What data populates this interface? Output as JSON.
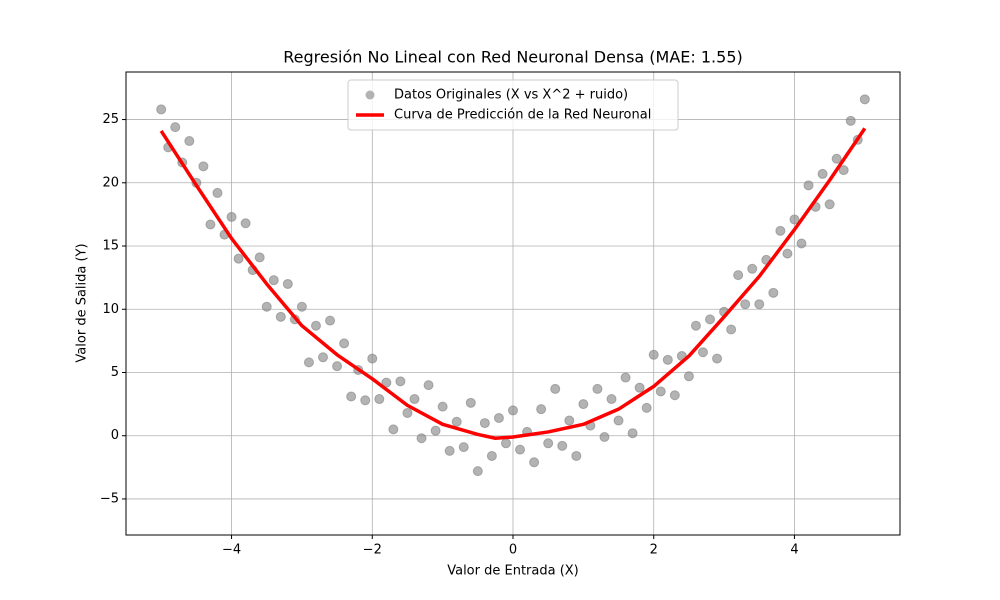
{
  "chart_data": {
    "type": "scatter",
    "title": "Regresión No Lineal con Red Neuronal Densa (MAE: 1.55)",
    "x_label": "Valor de Entrada (X)",
    "y_label": "Valor de Salida (Y)",
    "xlim": [
      -5.5,
      5.5
    ],
    "ylim": [
      -7.85,
      28.76
    ],
    "xticks": [
      {
        "value": -4,
        "label": "−4"
      },
      {
        "value": -2,
        "label": "−2"
      },
      0,
      2,
      4
    ],
    "yticks": [
      {
        "value": -5,
        "label": "−5"
      },
      0,
      5,
      10,
      15,
      20,
      25
    ],
    "grid": true,
    "legend": "upper center",
    "series": [
      {
        "name": "Datos Originales (X vs X^2 + ruido)",
        "type": "scatter",
        "color": "#808080",
        "x": [
          -5.0,
          -4.9,
          -4.8,
          -4.7,
          -4.6,
          -4.5,
          -4.4,
          -4.3,
          -4.2,
          -4.1,
          -4.0,
          -3.9,
          -3.8,
          -3.7,
          -3.6,
          -3.5,
          -3.4,
          -3.3,
          -3.2,
          -3.1,
          -3.0,
          -2.9,
          -2.8,
          -2.7,
          -2.6,
          -2.5,
          -2.4,
          -2.3,
          -2.2,
          -2.1,
          -2.0,
          -1.9,
          -1.8,
          -1.7,
          -1.6,
          -1.5,
          -1.4,
          -1.3,
          -1.2,
          -1.1,
          -1.0,
          -0.9,
          -0.8,
          -0.7,
          -0.6,
          -0.5,
          -0.4,
          -0.3,
          -0.2,
          -0.1,
          0.0,
          0.1,
          0.2,
          0.3,
          0.4,
          0.5,
          0.6,
          0.7,
          0.8,
          0.9,
          1.0,
          1.1,
          1.2,
          1.3,
          1.4,
          1.5,
          1.6,
          1.7,
          1.8,
          1.9,
          2.0,
          2.1,
          2.2,
          2.3,
          2.4,
          2.5,
          2.6,
          2.7,
          2.8,
          2.9,
          3.0,
          3.1,
          3.2,
          3.3,
          3.4,
          3.5,
          3.6,
          3.7,
          3.8,
          3.9,
          4.0,
          4.1,
          4.2,
          4.3,
          4.4,
          4.5,
          4.6,
          4.7,
          4.8,
          4.9,
          5.0
        ],
        "values": [
          25.8,
          22.8,
          24.4,
          21.6,
          23.3,
          20.0,
          21.3,
          16.7,
          19.2,
          15.9,
          17.3,
          14.0,
          16.8,
          13.1,
          14.1,
          10.2,
          12.3,
          9.4,
          12.0,
          9.2,
          10.2,
          5.8,
          8.7,
          6.2,
          9.1,
          5.5,
          7.3,
          3.1,
          5.2,
          2.8,
          6.1,
          2.9,
          4.2,
          0.5,
          4.3,
          1.8,
          2.9,
          -0.2,
          4.0,
          0.4,
          2.3,
          -1.2,
          1.1,
          -0.9,
          2.6,
          -2.8,
          1.0,
          -1.6,
          1.4,
          -0.6,
          2.0,
          -1.1,
          0.3,
          -2.1,
          2.1,
          -0.6,
          3.7,
          -0.8,
          1.2,
          -1.6,
          2.5,
          0.8,
          3.7,
          -0.1,
          2.9,
          1.2,
          4.6,
          0.2,
          3.8,
          2.2,
          6.4,
          3.5,
          6.0,
          3.2,
          6.3,
          4.7,
          8.7,
          6.6,
          9.2,
          6.1,
          9.8,
          8.4,
          12.7,
          10.4,
          13.2,
          10.4,
          13.9,
          11.3,
          16.2,
          14.4,
          17.1,
          15.2,
          19.8,
          18.1,
          20.7,
          18.3,
          21.9,
          21.0,
          24.9,
          23.4,
          26.6
        ]
      },
      {
        "name": "Curva de Predicción de la Red Neuronal",
        "type": "line",
        "color": "#ff0000",
        "x": [
          -5,
          -4.5,
          -4,
          -3.5,
          -3,
          -2.5,
          -2,
          -1.5,
          -1,
          -0.5,
          -0.25,
          0,
          0.5,
          1,
          1.5,
          2,
          2.5,
          3,
          3.5,
          4,
          4.5,
          5
        ],
        "values": [
          24.1,
          19.8,
          15.6,
          12.0,
          8.7,
          6.4,
          4.5,
          2.4,
          0.9,
          0.1,
          -0.2,
          -0.1,
          0.3,
          0.9,
          2.1,
          3.9,
          6.3,
          9.4,
          12.6,
          16.3,
          20.2,
          24.3
        ]
      }
    ]
  }
}
